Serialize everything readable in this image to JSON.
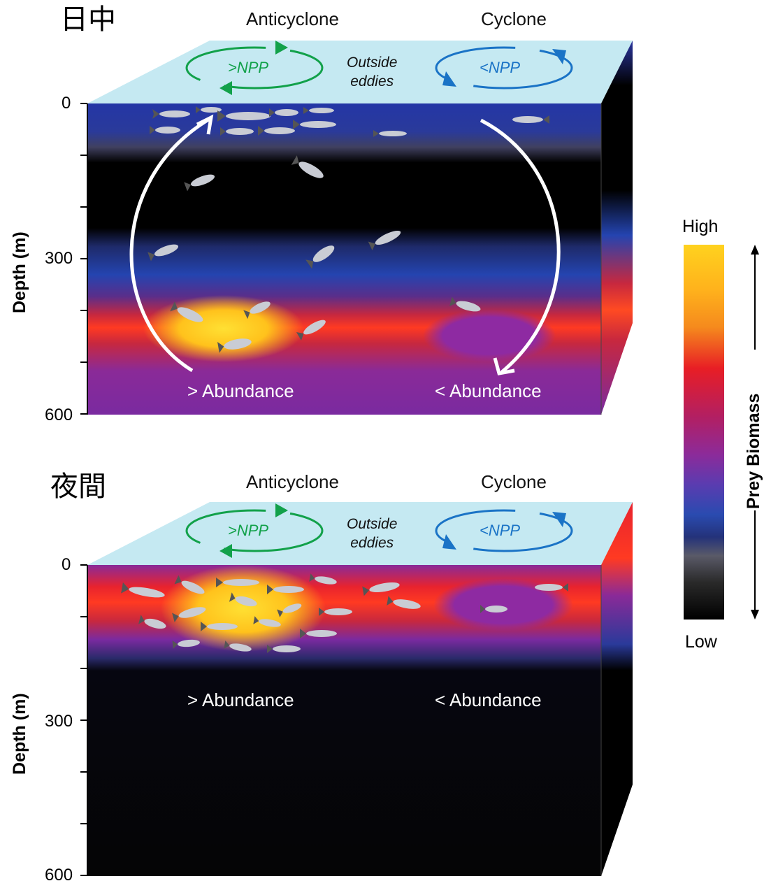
{
  "day": {
    "title": "日中",
    "anticyclone": "Anticyclone",
    "cyclone": "Cyclone",
    "outside_line1": "Outside",
    "outside_line2": "eddies",
    "npp_high": ">NPP",
    "npp_low": "<NPP",
    "ylabel": "Depth (m)",
    "ticks": [
      "0",
      "300",
      "600"
    ],
    "more_abundance": "> Abundance",
    "less_abundance": "< Abundance"
  },
  "night": {
    "title": "夜間",
    "anticyclone": "Anticyclone",
    "cyclone": "Cyclone",
    "outside_line1": "Outside",
    "outside_line2": "eddies",
    "npp_high": ">NPP",
    "npp_low": "<NPP",
    "ylabel": "Depth (m)",
    "ticks": [
      "0",
      "300",
      "600"
    ],
    "more_abundance": "> Abundance",
    "less_abundance": "< Abundance"
  },
  "colorbar": {
    "high": "High",
    "low": "Low",
    "title": "Prey Biomass"
  },
  "colors": {
    "surface": "#c5e9f2",
    "green_arrow": "#12a14a",
    "blue_arrow": "#1a73c6",
    "prey_high": "#ffd21e",
    "prey_mid": "#e81e25",
    "prey_low": "#000000"
  }
}
